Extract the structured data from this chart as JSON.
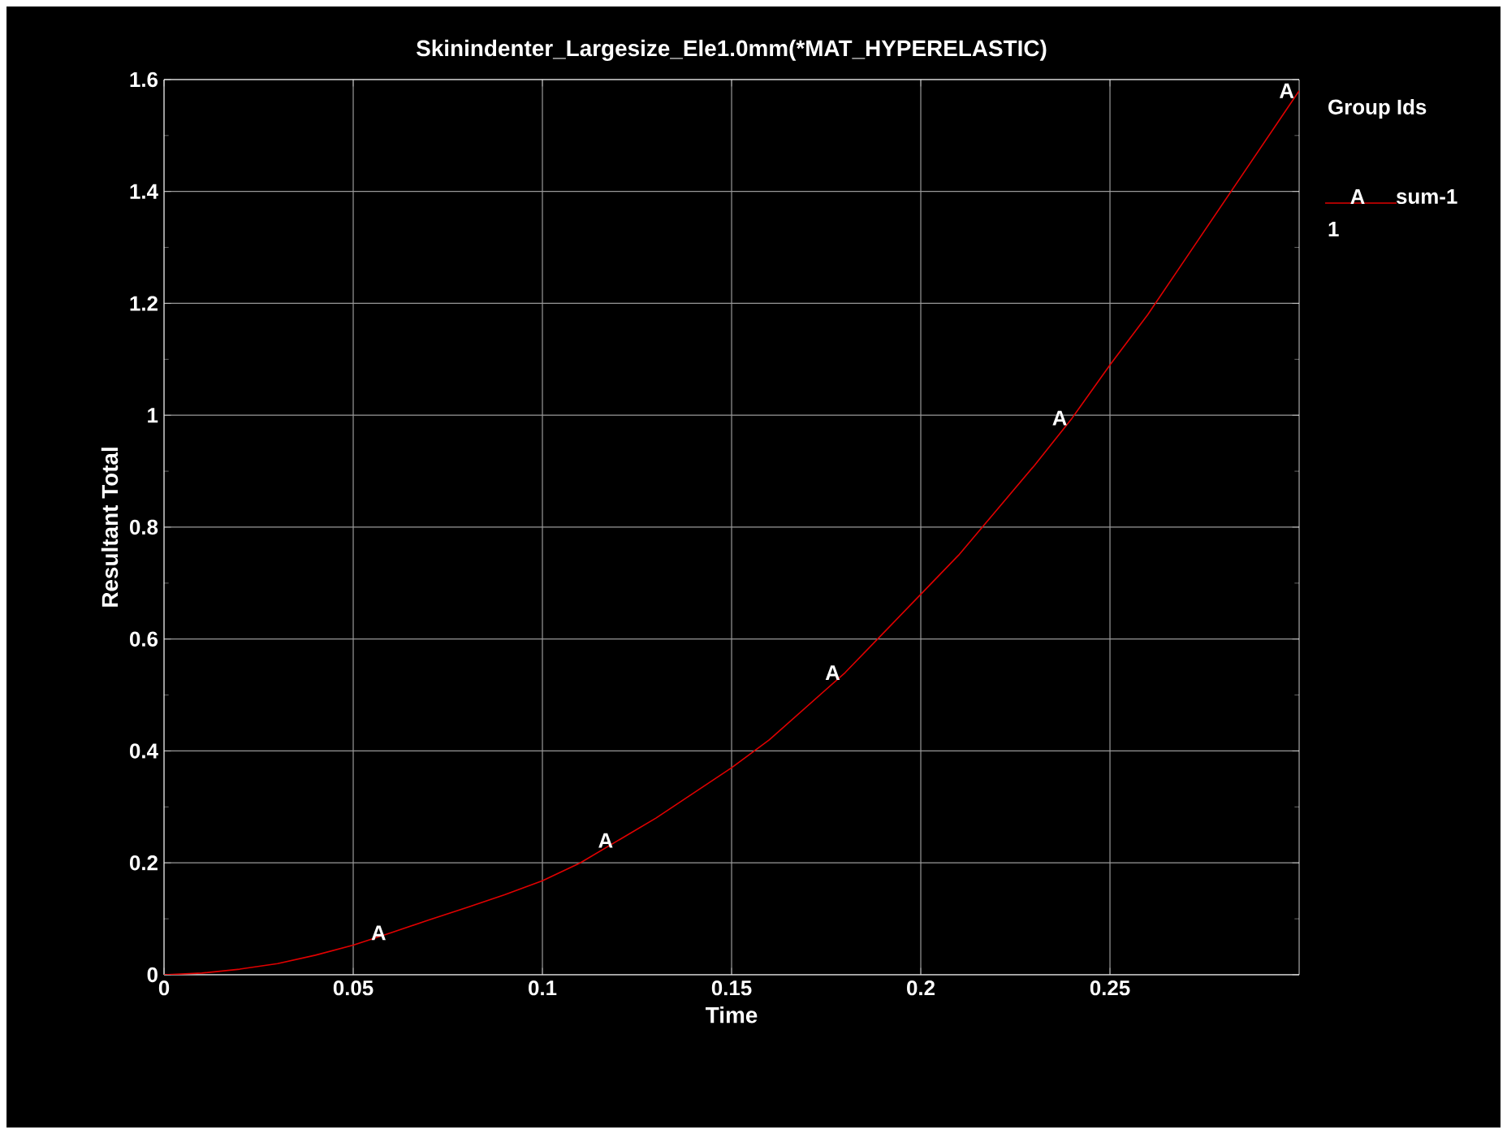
{
  "chart_data": {
    "type": "line",
    "title": "Skinindenter_Largesize_Ele1.0mm(*MAT_HYPERELASTIC)",
    "xlabel": "Time",
    "ylabel": "Resultant Total",
    "legend_title": "Group Ids",
    "x": [
      0,
      0.01,
      0.02,
      0.03,
      0.04,
      0.05,
      0.06,
      0.07,
      0.08,
      0.09,
      0.1,
      0.11,
      0.12,
      0.13,
      0.14,
      0.15,
      0.16,
      0.17,
      0.18,
      0.19,
      0.2,
      0.21,
      0.22,
      0.23,
      0.24,
      0.25,
      0.26,
      0.27,
      0.28,
      0.29,
      0.3
    ],
    "series": [
      {
        "name": "sum-1",
        "color": "#e00000",
        "values": [
          0,
          0.003,
          0.01,
          0.02,
          0.035,
          0.053,
          0.075,
          0.098,
          0.12,
          0.143,
          0.168,
          0.2,
          0.24,
          0.28,
          0.325,
          0.37,
          0.42,
          0.48,
          0.54,
          0.61,
          0.68,
          0.75,
          0.83,
          0.91,
          0.995,
          1.09,
          1.18,
          1.28,
          1.38,
          1.48,
          1.58
        ]
      }
    ],
    "annotations": [
      {
        "text": "A",
        "x": 0.06,
        "y": 0.075
      },
      {
        "text": "A",
        "x": 0.12,
        "y": 0.24
      },
      {
        "text": "A",
        "x": 0.18,
        "y": 0.54
      },
      {
        "text": "A",
        "x": 0.24,
        "y": 0.995
      },
      {
        "text": "A",
        "x": 0.3,
        "y": 1.58
      },
      "A",
      "1"
    ],
    "xlim": [
      0,
      0.3
    ],
    "ylim": [
      0,
      1.6
    ],
    "xticks": [
      0,
      0.05,
      0.1,
      0.15,
      0.2,
      0.25
    ],
    "yticks": [
      0,
      0.2,
      0.4,
      0.6,
      0.8,
      1,
      1.2,
      1.4,
      1.6
    ],
    "grid": true,
    "legend": "right"
  }
}
